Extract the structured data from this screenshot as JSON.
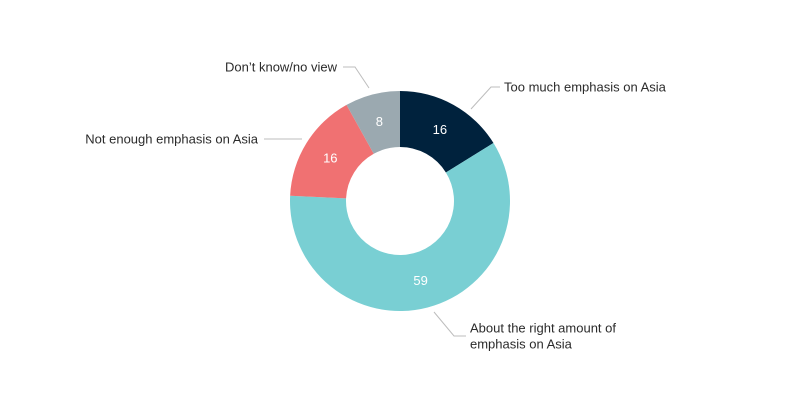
{
  "chart_data": {
    "type": "pie",
    "donut": true,
    "categories": [
      "Too much emphasis on Asia",
      "About the right amount of emphasis on Asia",
      "Not enough emphasis on Asia",
      "Don’t know/no view"
    ],
    "values": [
      16,
      59,
      16,
      8
    ],
    "value_labels": [
      "16",
      "59",
      "16",
      "8"
    ],
    "colors": [
      "#00223d",
      "#79cfd3",
      "#f07172",
      "#9ba9b0"
    ],
    "callouts": [
      {
        "lines": [
          "Too much emphasis on Asia"
        ]
      },
      {
        "lines": [
          "About the right amount of",
          "emphasis on Asia"
        ]
      },
      {
        "lines": [
          "Not enough emphasis on Asia"
        ]
      },
      {
        "lines": [
          "Don’t know/no view"
        ]
      }
    ],
    "start_angle_deg": 0,
    "direction": "clockwise",
    "legend": "none"
  }
}
